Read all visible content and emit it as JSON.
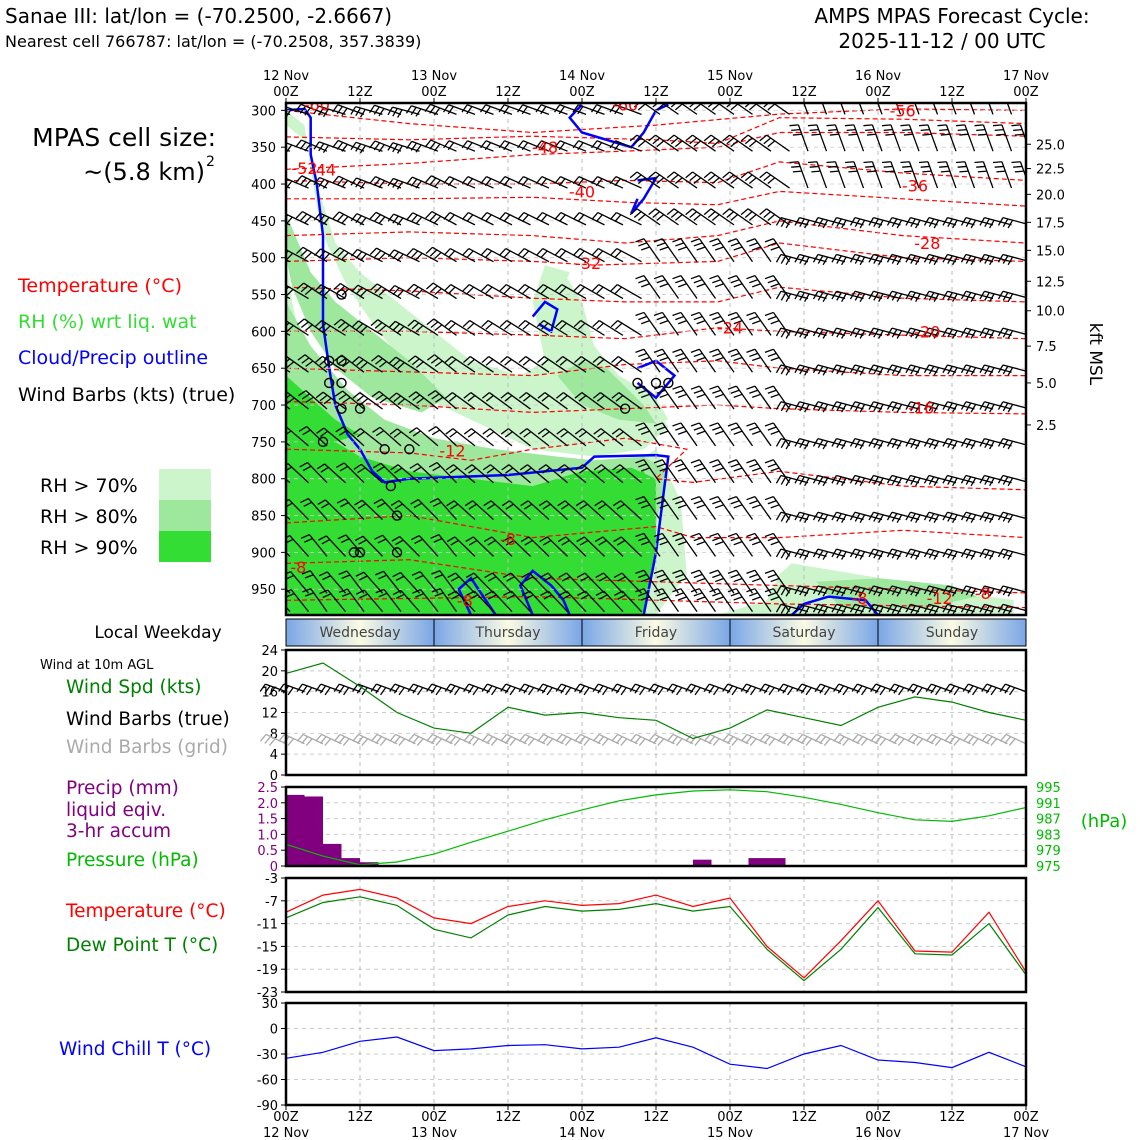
{
  "header": {
    "station": "Sanae III: lat/lon = (-70.2500, -2.6667)",
    "nearest": "Nearest cell 766787: lat/lon = (-70.2508, 357.3839)",
    "cycle_title": "AMPS MPAS Forecast Cycle:",
    "cycle_time": "2025-11-12 / 00 UTC"
  },
  "sidebar": {
    "cell_size_label": "MPAS cell size:",
    "cell_size_value": "~(5.8 km)",
    "cell_size_exp": "2",
    "legend": [
      {
        "text": "Temperature (°C)",
        "color": "#ff0000"
      },
      {
        "text": "RH (%) wrt liq. wat",
        "color": "#33dd33"
      },
      {
        "text": "Cloud/Precip outline",
        "color": "#0000ff"
      },
      {
        "text": "Wind Barbs (kts) (true)",
        "color": "#000000"
      }
    ],
    "rh_boxes": [
      {
        "text": "RH > 70%",
        "color": "#ccf5cc"
      },
      {
        "text": "RH > 80%",
        "color": "#9de89d"
      },
      {
        "text": "RH > 90%",
        "color": "#33dd33"
      }
    ],
    "weekday_label": "Local Weekday",
    "wind10_label": "Wind at 10m AGL",
    "wind_panel": [
      {
        "text": "Wind Spd (kts)",
        "color": "#008000"
      },
      {
        "text": "Wind Barbs (true)",
        "color": "#000000"
      },
      {
        "text": "Wind Barbs (grid)",
        "color": "#aaaaaa"
      }
    ],
    "precip_panel": [
      {
        "text": "Precip (mm)",
        "color": "#800080"
      },
      {
        "text": "liquid eqiv.",
        "color": "#800080"
      },
      {
        "text": "3-hr accum",
        "color": "#800080"
      },
      {
        "text": "Pressure (hPa)",
        "color": "#00bb00"
      }
    ],
    "temp_panel": [
      {
        "text": "Temperature (°C)",
        "color": "#ff0000"
      },
      {
        "text": "Dew Point T (°C)",
        "color": "#008000"
      }
    ],
    "chill_panel": [
      {
        "text": "Wind Chill T (°C)",
        "color": "#0000ff"
      }
    ]
  },
  "colors": {
    "temperature": "#ff0000",
    "rh70": "#ccf5cc",
    "rh80": "#9de89d",
    "rh90": "#33dd33",
    "cloud": "#0000ff",
    "wind_speed": "#008000",
    "wind_grid": "#aaaaaa",
    "precip": "#800080",
    "pressure": "#00bb00",
    "dewpoint": "#008000",
    "windchill": "#0000ff"
  },
  "chart_data": [
    {
      "type": "heatmap",
      "time_ticks": [
        "12 Nov 00Z",
        "12Z",
        "13 Nov 00Z",
        "12Z",
        "14 Nov 00Z",
        "12Z",
        "15 Nov 00Z",
        "12Z",
        "16 Nov 00Z",
        "12Z",
        "17 Nov 00Z"
      ],
      "time_ticks_top_line1": [
        "12 Nov",
        "",
        "13 Nov",
        "",
        "14 Nov",
        "",
        "15 Nov",
        "",
        "16 Nov",
        "",
        "17 Nov"
      ],
      "time_ticks_line2": [
        "00Z",
        "12Z",
        "00Z",
        "12Z",
        "00Z",
        "12Z",
        "00Z",
        "12Z",
        "00Z",
        "12Z",
        "00Z"
      ],
      "xlim_hours": [
        0,
        120
      ],
      "ylabel_left": "",
      "pressure_ticks": [
        300,
        350,
        400,
        450,
        500,
        550,
        600,
        650,
        700,
        750,
        800,
        850,
        900,
        950
      ],
      "ylim_hPa": [
        985,
        290
      ],
      "ylabel_right": "kft MSL",
      "height_ticks": [
        {
          "label": "25.0",
          "p": 346
        },
        {
          "label": "22.5",
          "p": 379
        },
        {
          "label": "20.0",
          "p": 414
        },
        {
          "label": "17.5",
          "p": 452
        },
        {
          "label": "15.0",
          "p": 490
        },
        {
          "label": "12.5",
          "p": 532
        },
        {
          "label": "10.0",
          "p": 572
        },
        {
          "label": "7.5",
          "p": 620
        },
        {
          "label": "5.0",
          "p": 670
        },
        {
          "label": "2.5",
          "p": 727
        }
      ],
      "temperature_labels": [
        {
          "text": "-60",
          "t": 5,
          "p": 292
        },
        {
          "text": "-60",
          "t": 55,
          "p": 292
        },
        {
          "text": "-56",
          "t": 100,
          "p": 300
        },
        {
          "text": "-52",
          "t": 3,
          "p": 378
        },
        {
          "text": "-48",
          "t": 42,
          "p": 350
        },
        {
          "text": "-44",
          "t": 6,
          "p": 380
        },
        {
          "text": "-40",
          "t": 48,
          "p": 410
        },
        {
          "text": "-36",
          "t": 102,
          "p": 402
        },
        {
          "text": "-32",
          "t": 49,
          "p": 507
        },
        {
          "text": "-28",
          "t": 104,
          "p": 480
        },
        {
          "text": "-24",
          "t": 72,
          "p": 595
        },
        {
          "text": "-20",
          "t": 104,
          "p": 600
        },
        {
          "text": "-16",
          "t": 103,
          "p": 703
        },
        {
          "text": "-12",
          "t": 27,
          "p": 762
        },
        {
          "text": "-8",
          "t": 36,
          "p": 882
        },
        {
          "text": "-8",
          "t": 2,
          "p": 920
        },
        {
          "text": "-8",
          "t": 29,
          "p": 965
        },
        {
          "text": "-8",
          "t": 93,
          "p": 962
        },
        {
          "text": "-8",
          "t": 113,
          "p": 955
        },
        {
          "text": "-12",
          "t": 106,
          "p": 962
        }
      ]
    },
    {
      "type": "line",
      "name": "wind10m",
      "x_ticks": [
        "00Z",
        "12Z",
        "00Z",
        "12Z",
        "00Z",
        "12Z",
        "00Z",
        "12Z",
        "00Z",
        "12Z",
        "00Z"
      ],
      "ylim": [
        0,
        24
      ],
      "y_ticks": [
        0,
        4,
        8,
        12,
        16,
        20,
        24
      ],
      "x": [
        0,
        6,
        12,
        18,
        24,
        30,
        36,
        42,
        48,
        54,
        60,
        66,
        72,
        78,
        84,
        90,
        96,
        102,
        108,
        114,
        120
      ],
      "series": [
        {
          "values": [
            19.5,
            21.5,
            17,
            12,
            9,
            8,
            13,
            11.5,
            12,
            11,
            10.5,
            7,
            9,
            12.5,
            11,
            9.5,
            13,
            15,
            14,
            12,
            10.5
          ]
        }
      ],
      "barbs_true_y": 16,
      "barbs_grid_y": 6
    },
    {
      "type": "bar",
      "name": "precip_pressure",
      "ylim_precip": [
        0,
        2.5
      ],
      "y_ticks_precip": [
        "0",
        "0.5",
        "1.0",
        "1.5",
        "2.0",
        "2.5"
      ],
      "ylim_pressure": [
        975,
        995
      ],
      "y_ticks_pressure": [
        "975",
        "979",
        "983",
        "987",
        "991",
        "995"
      ],
      "ylabel_right": "(hPa)",
      "bars": [
        {
          "x": 0,
          "v": 2.25
        },
        {
          "x": 3,
          "v": 2.2
        },
        {
          "x": 6,
          "v": 0.7
        },
        {
          "x": 9,
          "v": 0.25
        },
        {
          "x": 12,
          "v": 0.12
        },
        {
          "x": 66,
          "v": 0.2
        },
        {
          "x": 75,
          "v": 0.25
        },
        {
          "x": 78,
          "v": 0.25
        }
      ],
      "pressure_x": [
        0,
        6,
        12,
        18,
        24,
        30,
        36,
        42,
        48,
        54,
        60,
        66,
        72,
        78,
        84,
        90,
        96,
        102,
        108,
        114,
        120
      ],
      "pressure_values": [
        980.5,
        977.5,
        975.3,
        976,
        978,
        981,
        983.8,
        986.7,
        989.2,
        991.5,
        993,
        994,
        994.3,
        993.8,
        992.4,
        990.6,
        988.5,
        986.7,
        986.3,
        987.7,
        989.8
      ]
    },
    {
      "type": "line",
      "name": "temperature_dewpoint",
      "ylim": [
        -23,
        -3
      ],
      "y_ticks": [
        -3,
        -7,
        -11,
        -15,
        -19,
        -23
      ],
      "x": [
        0,
        6,
        12,
        18,
        24,
        30,
        36,
        42,
        48,
        54,
        60,
        66,
        72,
        78,
        84,
        90,
        96,
        102,
        108,
        114,
        120
      ],
      "series": [
        {
          "values": [
            -9,
            -6,
            -5,
            -6.5,
            -10,
            -11,
            -8,
            -7,
            -7.8,
            -7.5,
            -6,
            -8,
            -6.5,
            -15,
            -20.5,
            -14,
            -7,
            -15.8,
            -16,
            -9,
            -19.5
          ]
        },
        {
          "values": [
            -10,
            -7.3,
            -6.3,
            -7.8,
            -12,
            -13.5,
            -9.5,
            -8,
            -8.8,
            -8.5,
            -7.5,
            -8.8,
            -8,
            -15.5,
            -21,
            -15.5,
            -8.2,
            -16.3,
            -16.5,
            -11,
            -20
          ]
        }
      ]
    },
    {
      "type": "line",
      "name": "windchill",
      "ylim": [
        -90,
        30
      ],
      "y_ticks": [
        30,
        0,
        -30,
        -60,
        -90
      ],
      "x": [
        0,
        6,
        12,
        18,
        24,
        30,
        36,
        42,
        48,
        54,
        60,
        66,
        72,
        78,
        84,
        90,
        96,
        102,
        108,
        114,
        120
      ],
      "series": [
        {
          "values": [
            -35,
            -28,
            -15,
            -10,
            -26,
            -24,
            -20,
            -19,
            -24,
            -22,
            -11,
            -22,
            -42,
            -47,
            -30,
            -20,
            -37,
            -40,
            -46,
            -28,
            -45
          ]
        }
      ]
    }
  ],
  "weekdays": [
    "Wednesday",
    "Thursday",
    "Friday",
    "Saturday",
    "Sunday"
  ]
}
